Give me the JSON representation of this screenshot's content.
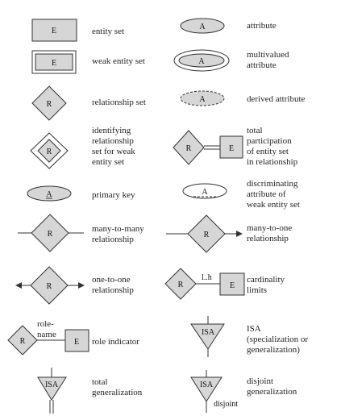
{
  "symbols": {
    "entity_set": {
      "inner": "E",
      "label": "entity set"
    },
    "attribute": {
      "inner": "A",
      "label": "attribute"
    },
    "weak_entity_set": {
      "inner": "E",
      "label": "weak entity set"
    },
    "multivalued_attribute": {
      "inner": "A",
      "label": "multivalued\nattribute"
    },
    "relationship_set": {
      "inner": "R",
      "label": "relationship set"
    },
    "derived_attribute": {
      "inner": "A",
      "label": "derived attribute"
    },
    "identifying_relationship_set": {
      "inner": "R",
      "label": "identifying\nrelationship\nset for weak\nentity set"
    },
    "total_participation": {
      "inner_r": "R",
      "inner_e": "E",
      "label": "total\nparticipation\nof entity set\nin relationship"
    },
    "primary_key": {
      "inner": "A",
      "label": "primary key"
    },
    "discriminating_attribute": {
      "inner": "A",
      "label": "discriminating\nattribute of\nweak entity set"
    },
    "many_to_many": {
      "inner": "R",
      "label": "many-to-many\nrelationship"
    },
    "many_to_one": {
      "inner": "R",
      "label": "many-to-one\nrelationship"
    },
    "one_to_one": {
      "inner": "R",
      "label": "one-to-one\nrelationship"
    },
    "cardinality_limits": {
      "inner_r": "R",
      "inner_e": "E",
      "limits": "l..h",
      "label": "cardinality\nlimits"
    },
    "role_indicator": {
      "inner_r": "R",
      "inner_e": "E",
      "role": "role-\nname",
      "label": "role indicator"
    },
    "isa": {
      "inner": "ISA",
      "label": "ISA\n(specialization or\ngeneralization)"
    },
    "total_generalization": {
      "inner": "ISA",
      "label": "total\ngeneralization"
    },
    "disjoint_generalization": {
      "inner": "ISA",
      "tag": "disjoint",
      "label": "disjoint\ngeneralization"
    }
  }
}
